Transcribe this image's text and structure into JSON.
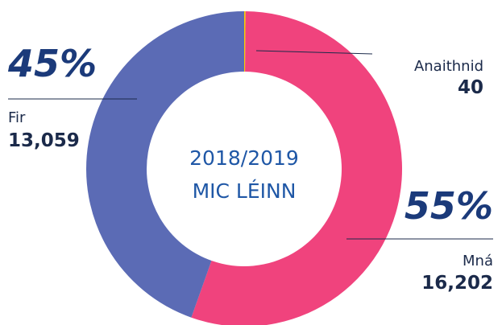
{
  "chart_data": {
    "type": "donut",
    "center_label": [
      "2018/2019",
      "MIC LÉINN"
    ],
    "categories": [
      "Anaithnid",
      "Mná",
      "Fir"
    ],
    "values": [
      40,
      16202,
      13059
    ],
    "value_labels": [
      "40",
      "16,202",
      "13,059"
    ],
    "percentages": [
      null,
      55,
      45
    ],
    "percentage_labels": [
      null,
      "55%",
      "45%"
    ],
    "colors": [
      "#f5d000",
      "#f0437d",
      "#5b6bb5"
    ]
  }
}
